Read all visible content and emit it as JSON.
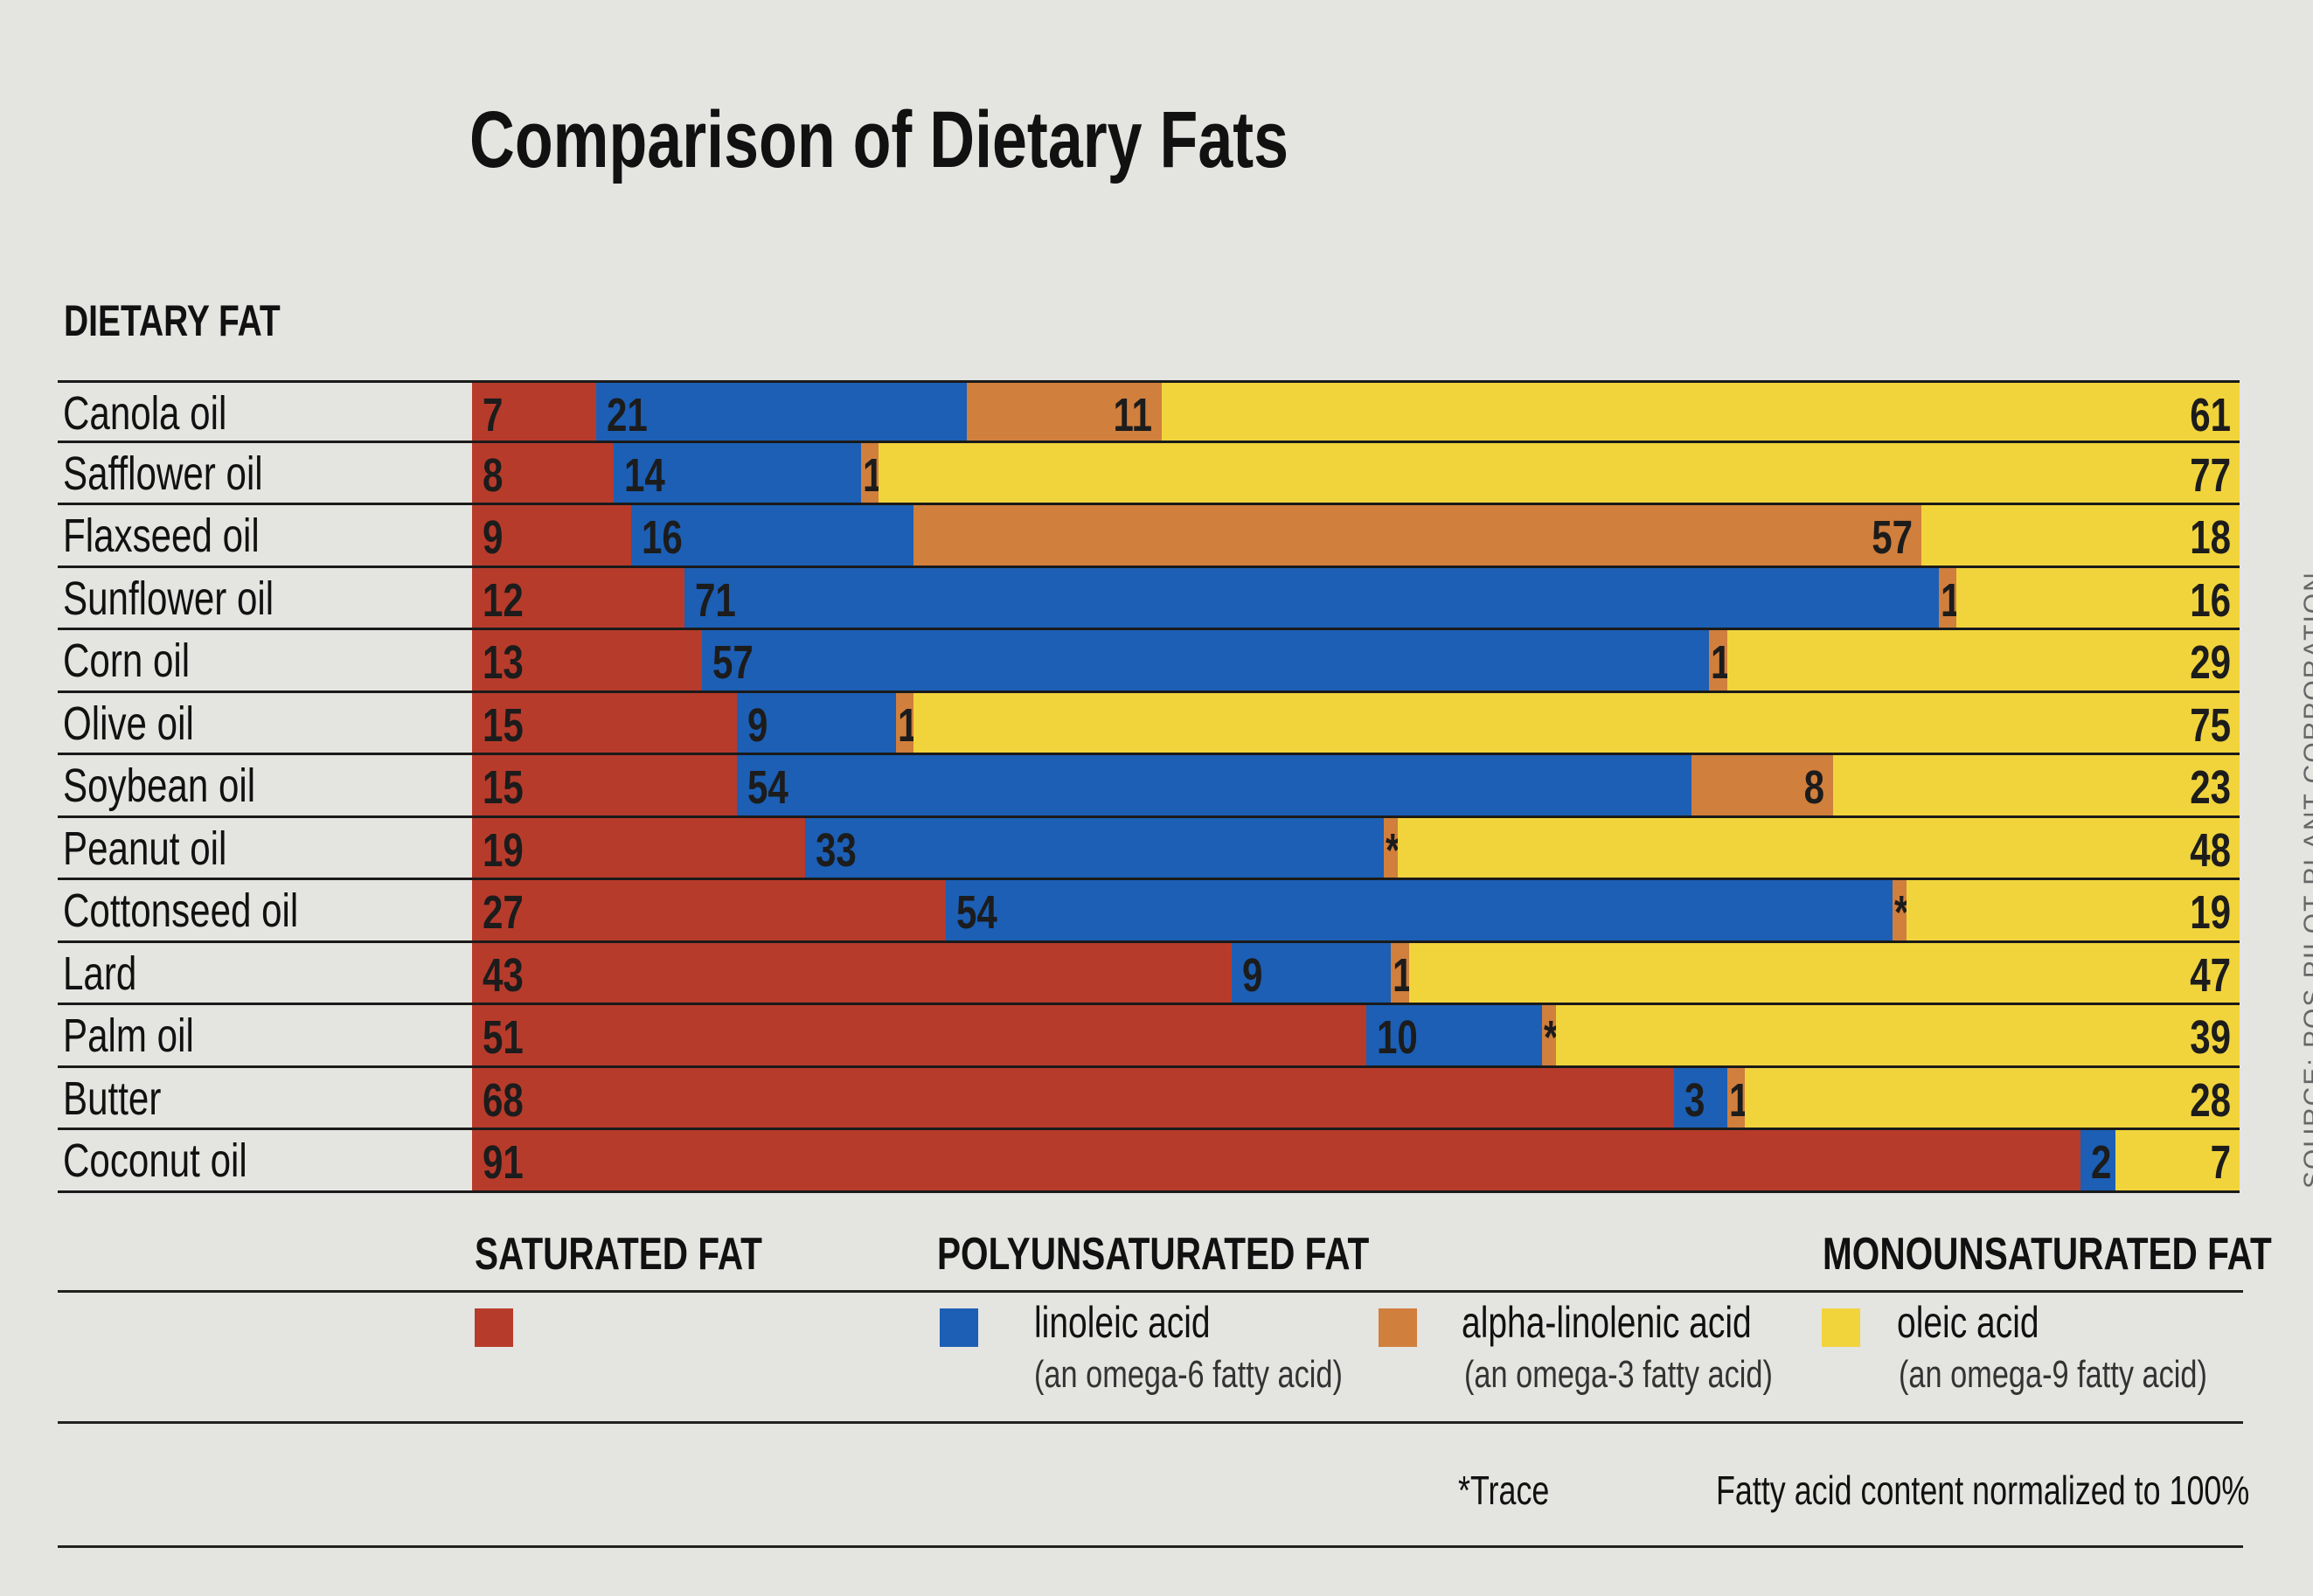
{
  "chart_data": {
    "type": "bar",
    "orientation": "horizontal",
    "stacked": true,
    "title": "Comparison of Dietary Fats",
    "category_header": "DIETARY FAT",
    "categories": [
      "Canola oil",
      "Safflower oil",
      "Flaxseed oil",
      "Sunflower oil",
      "Corn oil",
      "Olive oil",
      "Soybean oil",
      "Peanut oil",
      "Cottonseed oil",
      "Lard",
      "Palm oil",
      "Butter",
      "Coconut oil"
    ],
    "series": [
      {
        "name": "saturated fat",
        "color": "#b73b2b",
        "values": [
          7,
          8,
          9,
          12,
          13,
          15,
          15,
          19,
          27,
          43,
          51,
          68,
          91
        ]
      },
      {
        "name": "linoleic acid",
        "color": "#1c5fb5",
        "values": [
          21,
          14,
          16,
          71,
          57,
          9,
          54,
          33,
          54,
          9,
          10,
          3,
          2
        ]
      },
      {
        "name": "alpha-linolenic acid",
        "color": "#d07f3d",
        "values": [
          11,
          1,
          57,
          1,
          1,
          1,
          8,
          "*",
          "*",
          1,
          "*",
          1,
          null
        ]
      },
      {
        "name": "oleic acid",
        "color": "#f1d43c",
        "values": [
          61,
          77,
          18,
          16,
          29,
          75,
          23,
          48,
          19,
          47,
          39,
          28,
          7
        ]
      }
    ],
    "trace_symbol": "*",
    "xlim": [
      0,
      100
    ],
    "grid": false
  },
  "legend": {
    "saturated": "SATURATED FAT",
    "polyunsaturated": "POLYUNSATURATED FAT",
    "monounsaturated": "MONOUNSATURATED FAT",
    "linoleic": "linoleic acid",
    "linoleic_sub": "(an omega-6 fatty acid)",
    "alpha": "alpha-linolenic acid",
    "alpha_sub": "(an omega-3 fatty acid)",
    "oleic": "oleic acid",
    "oleic_sub": "(an omega-9 fatty acid)"
  },
  "footnotes": {
    "trace": "*Trace",
    "normalized": "Fatty acid content normalized to 100%"
  },
  "source": "SOURCE: POS PILOT PLANT CORPORATION"
}
